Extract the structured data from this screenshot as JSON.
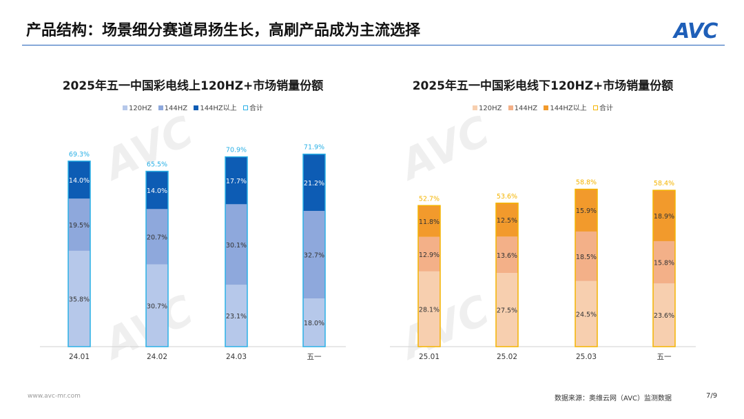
{
  "header": {
    "title": "产品结构：场景细分赛道昂扬生长，高刷产品成为主流选择",
    "logo_text": "AVC"
  },
  "footer": {
    "source": "数据来源：奥维云网（AVC）监测数据",
    "page": "7/9",
    "url": "www.avc-mr.com"
  },
  "chart_data": [
    {
      "type": "bar",
      "stacked": true,
      "title": "2025年五一中国彩电线上120HZ+市场销量份额",
      "categories": [
        "24.01",
        "24.02",
        "24.03",
        "五一"
      ],
      "legend": [
        "120HZ",
        "144HZ",
        "144HZ以上",
        "合计"
      ],
      "series": [
        {
          "name": "120HZ",
          "values": [
            35.8,
            30.7,
            23.1,
            18.0
          ],
          "labels": [
            "35.8%",
            "30.7%",
            "23.1%",
            "18.0%"
          ],
          "color": "#b6c8ea"
        },
        {
          "name": "144HZ",
          "values": [
            19.5,
            20.7,
            30.1,
            32.7
          ],
          "labels": [
            "19.5%",
            "20.7%",
            "30.1%",
            "32.7%"
          ],
          "color": "#8ea8dc"
        },
        {
          "name": "144HZ以上",
          "values": [
            14.0,
            14.0,
            17.7,
            21.2
          ],
          "labels": [
            "14.0%",
            "14.0%",
            "17.7%",
            "21.2%"
          ],
          "color": "#0d5cb4"
        }
      ],
      "totals": {
        "name": "合计",
        "values": [
          69.3,
          65.5,
          70.9,
          71.9
        ],
        "labels": [
          "69.3%",
          "65.5%",
          "70.9%",
          "71.9%"
        ],
        "color": "#2ab0e6"
      },
      "ylim": [
        0,
        78
      ]
    },
    {
      "type": "bar",
      "stacked": true,
      "title": "2025年五一中国彩电线下120HZ+市场销量份额",
      "categories": [
        "25.01",
        "25.02",
        "25.03",
        "五一"
      ],
      "legend": [
        "120HZ",
        "144HZ",
        "144HZ以上",
        "合计"
      ],
      "series": [
        {
          "name": "120HZ",
          "values": [
            28.1,
            27.5,
            24.5,
            23.6
          ],
          "labels": [
            "28.1%",
            "27.5%",
            "24.5%",
            "23.6%"
          ],
          "color": "#f7cfaf"
        },
        {
          "name": "144HZ",
          "values": [
            12.9,
            13.6,
            18.5,
            15.8
          ],
          "labels": [
            "12.9%",
            "13.6%",
            "18.5%",
            "15.8%"
          ],
          "color": "#f3b088"
        },
        {
          "name": "144HZ以上",
          "values": [
            11.8,
            12.5,
            15.9,
            18.9
          ],
          "labels": [
            "11.8%",
            "12.5%",
            "15.9%",
            "18.9%"
          ],
          "color": "#f29a2c"
        }
      ],
      "totals": {
        "name": "合计",
        "values": [
          52.7,
          53.6,
          58.8,
          58.4
        ],
        "labels": [
          "52.7%",
          "53.6%",
          "58.8%",
          "58.4%"
        ],
        "color": "#f4b400"
      },
      "ylim": [
        0,
        78
      ]
    }
  ]
}
